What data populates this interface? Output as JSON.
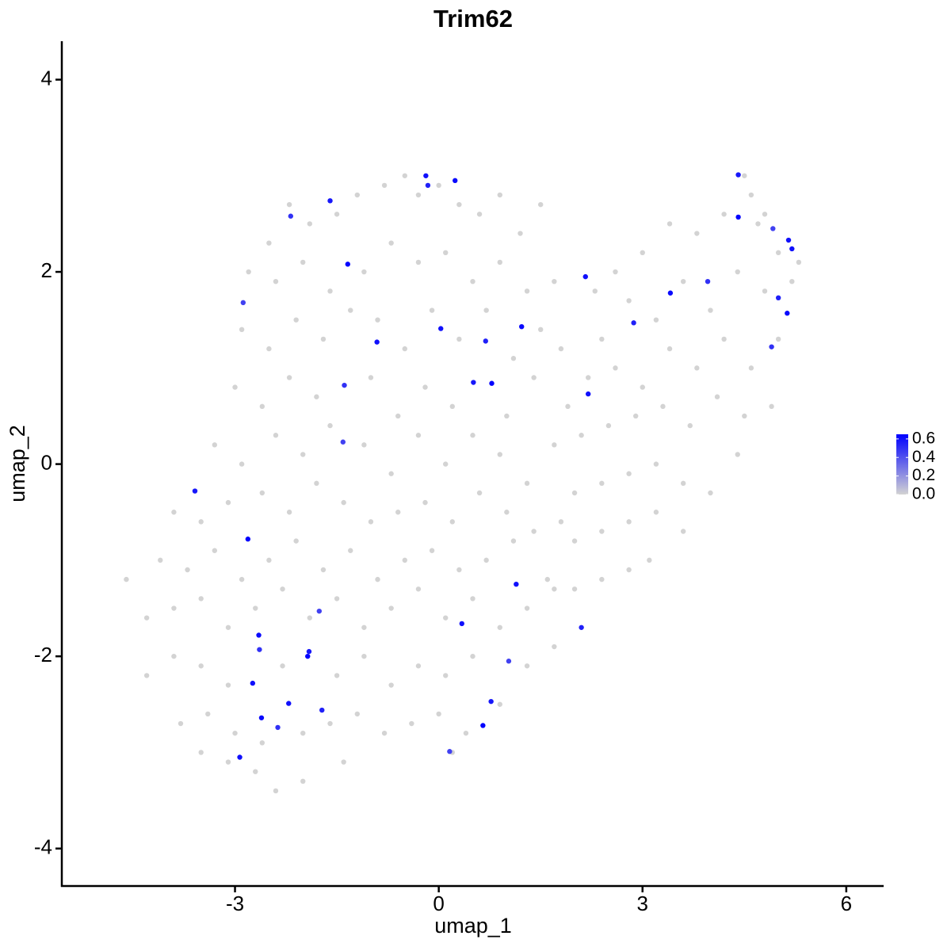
{
  "chart_data": {
    "type": "scatter",
    "title": "Trim62",
    "xlabel": "umap_1",
    "ylabel": "umap_2",
    "xlim": [
      -5.55,
      6.55
    ],
    "ylim": [
      -4.39,
      4.4
    ],
    "xticks": [
      -3,
      0,
      3,
      6
    ],
    "yticks": [
      -4,
      -2,
      0,
      2,
      4
    ],
    "x": [
      -2.5,
      -2.2,
      -1.9,
      -1.5,
      -1.2,
      -0.8,
      -0.5,
      -0.3,
      0.0,
      0.3,
      0.6,
      0.9,
      1.2,
      1.5,
      -2.8,
      -2.4,
      -2.0,
      -1.6,
      -1.1,
      -0.7,
      -0.3,
      0.1,
      0.5,
      0.9,
      1.3,
      1.7,
      -2.9,
      -2.5,
      -2.1,
      -1.7,
      -1.3,
      -0.9,
      -0.5,
      -0.1,
      0.3,
      0.7,
      1.1,
      1.5,
      1.8,
      -3.0,
      -2.6,
      -2.2,
      -1.8,
      -1.0,
      -0.6,
      -0.2,
      0.2,
      1.0,
      1.4,
      1.9,
      -3.3,
      -2.9,
      -2.4,
      -2.0,
      -1.6,
      -1.1,
      -0.7,
      -0.3,
      0.1,
      0.5,
      0.9,
      1.3,
      1.7,
      2.3,
      2.6,
      3.0,
      3.4,
      3.8,
      4.2,
      4.6,
      4.8,
      5.0,
      5.3,
      4.5,
      4.7,
      2.4,
      2.8,
      3.2,
      3.6,
      4.0,
      4.4,
      4.8,
      5.2,
      2.2,
      2.6,
      3.0,
      3.4,
      3.8,
      4.2,
      4.6,
      5.0,
      2.1,
      2.5,
      2.9,
      3.3,
      3.7,
      4.1,
      4.5,
      4.9,
      2.0,
      2.4,
      2.8,
      3.2,
      3.6,
      4.0,
      4.4,
      2.0,
      2.4,
      2.8,
      3.2,
      3.6,
      2.0,
      2.4,
      2.8,
      3.1,
      -3.9,
      -3.5,
      -3.1,
      -2.6,
      -2.2,
      -1.8,
      -1.4,
      -1.0,
      -0.6,
      -0.2,
      0.2,
      0.6,
      1.0,
      1.4,
      1.8,
      -4.1,
      -3.7,
      -3.3,
      -2.9,
      -2.5,
      -2.1,
      -1.7,
      -1.3,
      -0.9,
      -0.5,
      -0.1,
      0.3,
      0.7,
      1.1,
      1.6,
      -4.6,
      -4.3,
      -3.9,
      -3.5,
      -3.1,
      -2.7,
      -2.3,
      -1.9,
      -1.5,
      -1.1,
      -0.7,
      -0.3,
      0.1,
      0.5,
      0.9,
      1.3,
      1.7,
      -4.3,
      -3.9,
      -3.5,
      -3.1,
      -2.3,
      -1.5,
      -1.1,
      -0.7,
      -0.3,
      0.1,
      0.5,
      1.3,
      1.7,
      -3.8,
      -3.4,
      -3.0,
      -2.6,
      -2.0,
      -1.6,
      -1.2,
      -0.8,
      -0.4,
      0.0,
      0.4,
      0.9,
      -3.5,
      -3.1,
      -2.7,
      -2.4,
      -2.0,
      -1.4,
      0.2,
      -0.19,
      -0.16,
      0.24,
      -2.18,
      -1.6,
      -1.34,
      -2.88,
      -0.91,
      0.03,
      0.69,
      1.22,
      -1.39,
      0.51,
      0.78,
      -1.41,
      2.16,
      2.2,
      2.87,
      3.41,
      3.96,
      4.41,
      4.41,
      4.92,
      5.15,
      5.2,
      5.0,
      5.13,
      4.9,
      -3.59,
      -2.81,
      -1.76,
      1.14,
      0.34,
      2.1,
      -2.65,
      -2.64,
      -1.91,
      -1.93,
      1.03,
      -2.74,
      -2.21,
      -1.72,
      -2.61,
      -2.37,
      0.77,
      0.65,
      0.16,
      -2.93
    ],
    "y": [
      2.3,
      2.7,
      2.5,
      2.6,
      2.8,
      2.9,
      3.0,
      2.8,
      2.9,
      2.7,
      2.6,
      2.8,
      2.4,
      2.7,
      2.0,
      1.9,
      2.1,
      1.8,
      2.0,
      2.3,
      2.1,
      2.2,
      1.9,
      2.1,
      1.8,
      1.9,
      1.4,
      1.2,
      1.5,
      1.3,
      1.6,
      1.5,
      1.2,
      1.6,
      1.3,
      1.6,
      1.1,
      1.4,
      1.2,
      0.8,
      0.6,
      0.9,
      0.7,
      0.9,
      0.5,
      0.8,
      0.6,
      0.5,
      0.9,
      0.6,
      0.2,
      0.0,
      0.3,
      0.1,
      0.4,
      0.2,
      -0.1,
      0.3,
      0.0,
      0.3,
      0.1,
      -0.2,
      0.2,
      1.8,
      2.0,
      2.2,
      2.5,
      2.4,
      2.6,
      2.8,
      2.6,
      2.2,
      2.1,
      3.0,
      2.5,
      1.3,
      1.7,
      1.5,
      1.9,
      1.6,
      2.0,
      1.8,
      1.9,
      0.9,
      1.0,
      0.8,
      1.2,
      1.0,
      1.3,
      1.0,
      1.3,
      0.3,
      0.4,
      0.5,
      0.6,
      0.4,
      0.7,
      0.5,
      0.6,
      -0.3,
      -0.2,
      -0.1,
      0.0,
      -0.2,
      -0.3,
      0.1,
      -0.8,
      -0.7,
      -0.6,
      -0.5,
      -0.7,
      -1.3,
      -1.2,
      -1.1,
      -1.0,
      -0.5,
      -0.6,
      -0.4,
      -0.3,
      -0.5,
      -0.2,
      -0.4,
      -0.6,
      -0.5,
      -0.4,
      -0.6,
      -0.3,
      -0.5,
      -0.7,
      -0.6,
      -1.0,
      -1.1,
      -0.9,
      -1.2,
      -1.0,
      -0.8,
      -1.1,
      -0.9,
      -1.2,
      -1.0,
      -0.9,
      -1.1,
      -1.0,
      -0.8,
      -1.2,
      -1.2,
      -1.6,
      -1.5,
      -1.4,
      -1.7,
      -1.5,
      -1.3,
      -1.6,
      -1.4,
      -1.7,
      -1.5,
      -1.3,
      -1.6,
      -1.4,
      -1.7,
      -1.5,
      -1.3,
      -2.2,
      -2.0,
      -2.1,
      -2.3,
      -2.1,
      -2.2,
      -2.0,
      -2.3,
      -2.1,
      -2.2,
      -2.0,
      -2.1,
      -1.9,
      -2.7,
      -2.6,
      -2.8,
      -2.9,
      -2.8,
      -2.7,
      -2.6,
      -2.8,
      -2.7,
      -2.6,
      -2.8,
      -2.5,
      -3.0,
      -3.1,
      -3.2,
      -3.4,
      -3.3,
      -3.1,
      -3.0,
      3.0,
      2.9,
      2.95,
      2.58,
      2.74,
      2.08,
      1.68,
      1.27,
      1.41,
      1.28,
      1.43,
      0.82,
      0.85,
      0.84,
      0.23,
      1.95,
      0.73,
      1.47,
      1.78,
      1.9,
      3.01,
      2.57,
      2.45,
      2.33,
      2.24,
      1.73,
      1.57,
      1.22,
      -0.28,
      -0.78,
      -1.53,
      -1.25,
      -1.66,
      -1.7,
      -1.78,
      -1.93,
      -1.95,
      -2.0,
      -2.05,
      -2.28,
      -2.49,
      -2.56,
      -2.64,
      -2.74,
      -2.47,
      -2.72,
      -2.99,
      -3.05
    ],
    "values": [
      0,
      0,
      0,
      0,
      0,
      0,
      0,
      0,
      0,
      0,
      0,
      0,
      0,
      0,
      0,
      0,
      0,
      0,
      0,
      0,
      0,
      0,
      0,
      0,
      0,
      0,
      0,
      0,
      0,
      0,
      0,
      0,
      0,
      0,
      0,
      0,
      0,
      0,
      0,
      0,
      0,
      0,
      0,
      0,
      0,
      0,
      0,
      0,
      0,
      0,
      0,
      0,
      0,
      0,
      0,
      0,
      0,
      0,
      0,
      0,
      0,
      0,
      0,
      0,
      0,
      0,
      0,
      0,
      0,
      0,
      0,
      0,
      0,
      0,
      0,
      0,
      0,
      0,
      0,
      0,
      0,
      0,
      0,
      0,
      0,
      0,
      0,
      0,
      0,
      0,
      0,
      0,
      0,
      0,
      0,
      0,
      0,
      0,
      0,
      0,
      0,
      0,
      0,
      0,
      0,
      0,
      0,
      0,
      0,
      0,
      0,
      0,
      0,
      0,
      0,
      0,
      0,
      0,
      0,
      0,
      0,
      0,
      0,
      0,
      0,
      0,
      0,
      0,
      0,
      0,
      0,
      0,
      0,
      0,
      0,
      0,
      0,
      0,
      0,
      0,
      0,
      0,
      0,
      0,
      0,
      0,
      0,
      0,
      0,
      0,
      0,
      0,
      0,
      0,
      0,
      0,
      0,
      0,
      0,
      0,
      0,
      0,
      0,
      0,
      0,
      0,
      0,
      0,
      0,
      0,
      0,
      0,
      0,
      0,
      0,
      0,
      0,
      0,
      0,
      0,
      0,
      0,
      0,
      0,
      0,
      0,
      0,
      0,
      0,
      0,
      0,
      0,
      0,
      0,
      0.6,
      0.55,
      0.62,
      0.5,
      0.58,
      0.64,
      0.45,
      0.6,
      0.6,
      0.55,
      0.62,
      0.5,
      0.58,
      0.64,
      0.45,
      0.6,
      0.6,
      0.55,
      0.62,
      0.5,
      0.58,
      0.64,
      0.45,
      0.6,
      0.6,
      0.55,
      0.62,
      0.5,
      0.58,
      0.64,
      0.45,
      0.6,
      0.6,
      0.55,
      0.62,
      0.5,
      0.58,
      0.64,
      0.45,
      0.6,
      0.6,
      0.55,
      0.62,
      0.5,
      0.58,
      0.64,
      0.45,
      0.6
    ],
    "color_scale": {
      "colors": [
        "#d3d3d3",
        "#0000ff"
      ],
      "lim": [
        0,
        0.65
      ],
      "ticks": [
        {
          "value": 0,
          "label": "0.0"
        },
        0.2,
        0.4,
        0.6
      ]
    }
  }
}
